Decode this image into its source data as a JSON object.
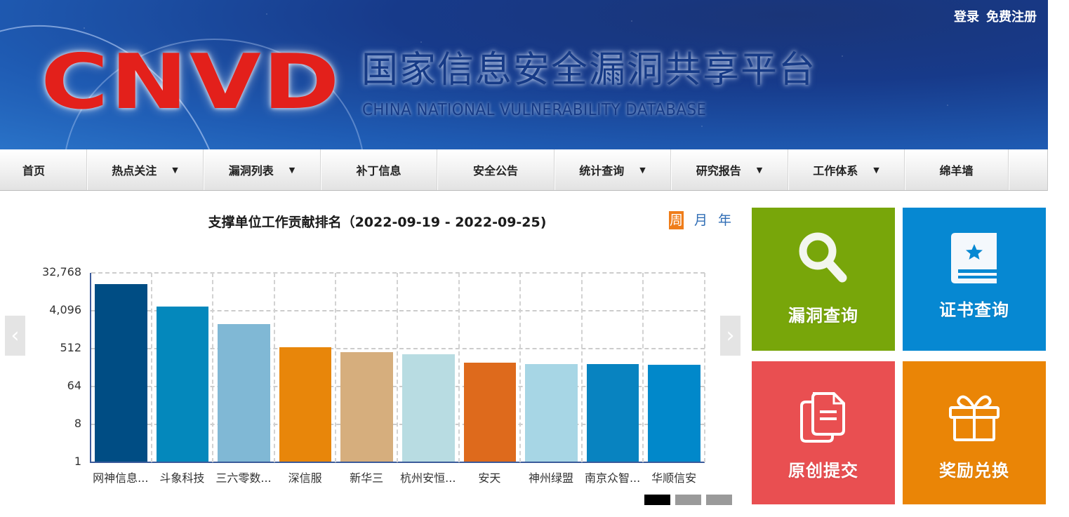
{
  "header": {
    "logo_text": "CNVD",
    "title_cn": "国家信息安全漏洞共享平台",
    "title_en": "CHINA NATIONAL VULNERABILITY DATABASE",
    "login_label": "登录",
    "register_label": "免费注册"
  },
  "nav": {
    "items": [
      {
        "label": "首页",
        "dropdown": false,
        "caret": ""
      },
      {
        "label": "热点关注",
        "dropdown": true,
        "caret": "▼"
      },
      {
        "label": "漏洞列表",
        "dropdown": true,
        "caret": "▼"
      },
      {
        "label": "补丁信息",
        "dropdown": false,
        "caret": ""
      },
      {
        "label": "安全公告",
        "dropdown": false,
        "caret": ""
      },
      {
        "label": "统计查询",
        "dropdown": true,
        "caret": "▼"
      },
      {
        "label": "研究报告",
        "dropdown": true,
        "caret": "▼"
      },
      {
        "label": "工作体系",
        "dropdown": true,
        "caret": "▼"
      },
      {
        "label": "绵羊墙",
        "dropdown": false,
        "caret": ""
      }
    ]
  },
  "chart_panel": {
    "period_tabs": [
      {
        "label": "周",
        "active": true
      },
      {
        "label": "月",
        "active": false
      },
      {
        "label": "年",
        "active": false
      }
    ],
    "prev_arrow": "‹",
    "next_arrow": "›",
    "pager": [
      {
        "active": true
      },
      {
        "active": false
      },
      {
        "active": false
      }
    ]
  },
  "chart_data": {
    "type": "bar",
    "title": "支撑单位工作贡献排名（2022-09-19 - 2022-09-25)",
    "xlabel": "",
    "ylabel": "",
    "yscale": "log2",
    "ylim": [
      1,
      32768
    ],
    "yticks": [
      "1",
      "8",
      "64",
      "512",
      "4,096",
      "32,768"
    ],
    "grid": true,
    "legend": "none",
    "categories": [
      "网神信息...",
      "斗象科技",
      "三六零数...",
      "深信服",
      "新华三",
      "杭州安恒...",
      "安天",
      "神州绿盟",
      "南京众智...",
      "华顺信安"
    ],
    "values": [
      17600,
      5150,
      1970,
      553,
      422,
      376,
      237,
      219,
      219,
      215
    ],
    "colors": [
      "#004d84",
      "#0488bc",
      "#80b8d5",
      "#e8860a",
      "#d6ae7d",
      "#b8dce2",
      "#de6a1c",
      "#a7d6e5",
      "#0883c0",
      "#0188ca"
    ]
  },
  "tiles": [
    {
      "label": "漏洞查询",
      "icon": "search-icon",
      "color": "#78a60a"
    },
    {
      "label": "证书查询",
      "icon": "certificate-book-icon",
      "color": "#0688d2"
    },
    {
      "label": "原创提交",
      "icon": "document-copy-icon",
      "color": "#e94f51"
    },
    {
      "label": "奖励兑换",
      "icon": "gift-icon",
      "color": "#ea8506"
    }
  ]
}
